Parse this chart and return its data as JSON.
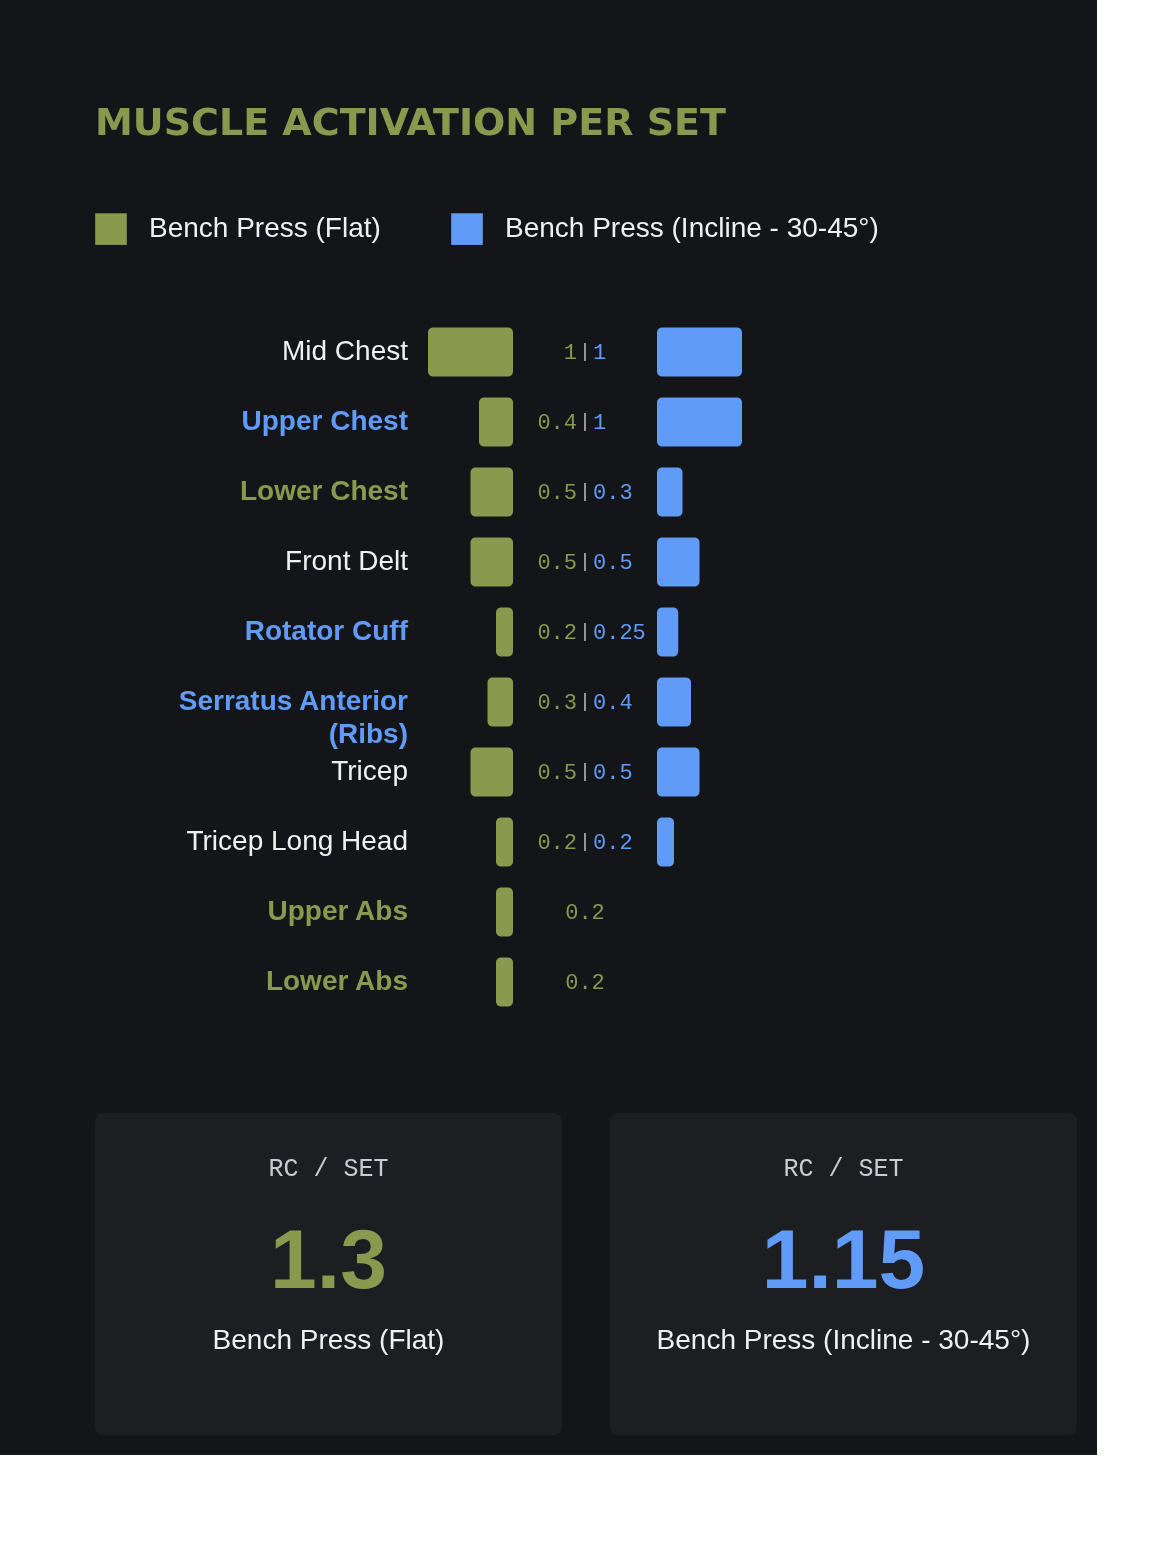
{
  "chart_data": [
    {
      "type": "bar",
      "title": "MUSCLE ACTIVATION PER SET",
      "orientation": "horizontal",
      "legend": "top",
      "data_labels": true,
      "tick_labels": "y",
      "categories": [
        "Mid Chest",
        "Upper Chest",
        "Lower Chest",
        "Front Delt",
        "Rotator Cuff",
        "Serratus Anterior (Ribs)",
        "Tricep",
        "Tricep Long Head",
        "Upper Abs",
        "Lower Abs"
      ],
      "xlim": [
        1,
        0
      ],
      "series": [
        {
          "name": "Bench Press (Flat)",
          "color": "#8a994d",
          "values": [
            1,
            0.4,
            0.5,
            0.5,
            0.2,
            0.3,
            0.5,
            0.2,
            0.2,
            0.2
          ]
        }
      ]
    },
    {
      "type": "bar",
      "orientation": "horizontal",
      "legend": "top",
      "data_labels": true,
      "tick_labels": false,
      "categories": [
        null,
        null,
        null,
        null,
        null,
        null,
        null,
        null,
        null,
        null
      ],
      "xlim": [
        0,
        1
      ],
      "series": [
        {
          "name": "Bench Press (Incline - 30-45°)",
          "color": "#609cf7",
          "values": [
            1,
            1,
            0.3,
            0.5,
            0.25,
            0.4,
            0.5,
            0.2,
            null,
            null
          ]
        }
      ]
    },
    {
      "type": "other",
      "title": "RC / SET",
      "annotations": [
        "1.3",
        "Bench Press (Flat)"
      ]
    },
    {
      "type": "other",
      "title": "RC / SET",
      "annotations": [
        "1.15",
        "Bench Press (Incline - 30-45°)"
      ]
    }
  ]
}
